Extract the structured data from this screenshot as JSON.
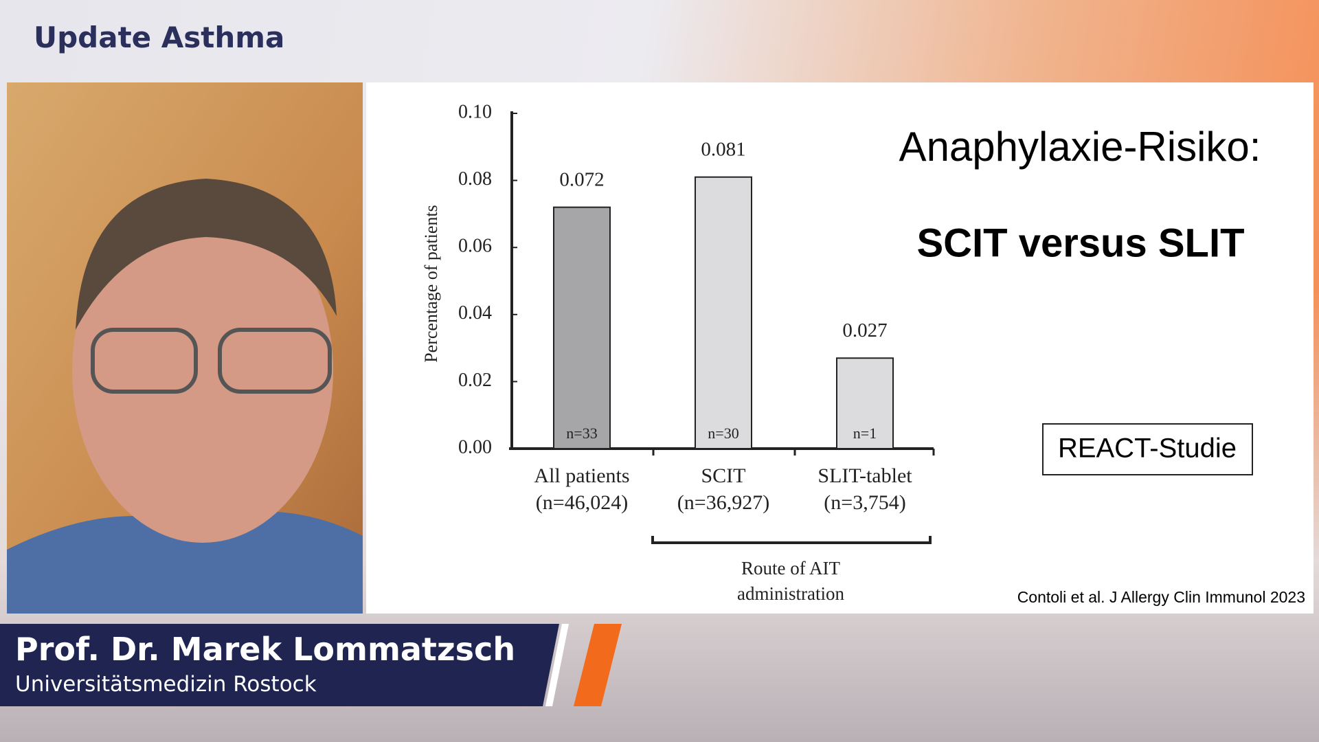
{
  "header": {
    "title": "Update Asthma"
  },
  "speaker": {
    "name": "Prof. Dr. Marek Lommatzsch",
    "affiliation": "Universitätsmedizin Rostock"
  },
  "slide": {
    "title": "Anaphylaxie-Risiko:",
    "subtitle": "SCIT versus SLIT",
    "badge": "REACT-Studie",
    "citation": "Contoli et al. J Allergy Clin Immunol 2023"
  },
  "chart_data": {
    "type": "bar",
    "ylabel": "Percentage of patients",
    "categories": [
      "All patients",
      "SCIT",
      "SLIT-tablet"
    ],
    "category_notes": [
      "(n=46,024)",
      "(n=36,927)",
      "(n=3,754)"
    ],
    "values": [
      0.072,
      0.081,
      0.027
    ],
    "bar_labels": [
      "n=33",
      "n=30",
      "n=1"
    ],
    "colors": [
      "#a6a6a8",
      "#dcdcde",
      "#dcdcde"
    ],
    "ylim": [
      0,
      0.1
    ],
    "yticks": [
      {
        "value": 0,
        "label": "0.00"
      },
      {
        "value": 0.02,
        "label": "0.02"
      },
      {
        "value": 0.04,
        "label": "0.04"
      },
      {
        "value": 0.06,
        "label": "0.06"
      },
      {
        "value": 0.08,
        "label": "0.08"
      },
      {
        "value": 0.1,
        "label": "0.10"
      }
    ],
    "group_label": [
      "Route of AIT",
      "administration"
    ]
  }
}
